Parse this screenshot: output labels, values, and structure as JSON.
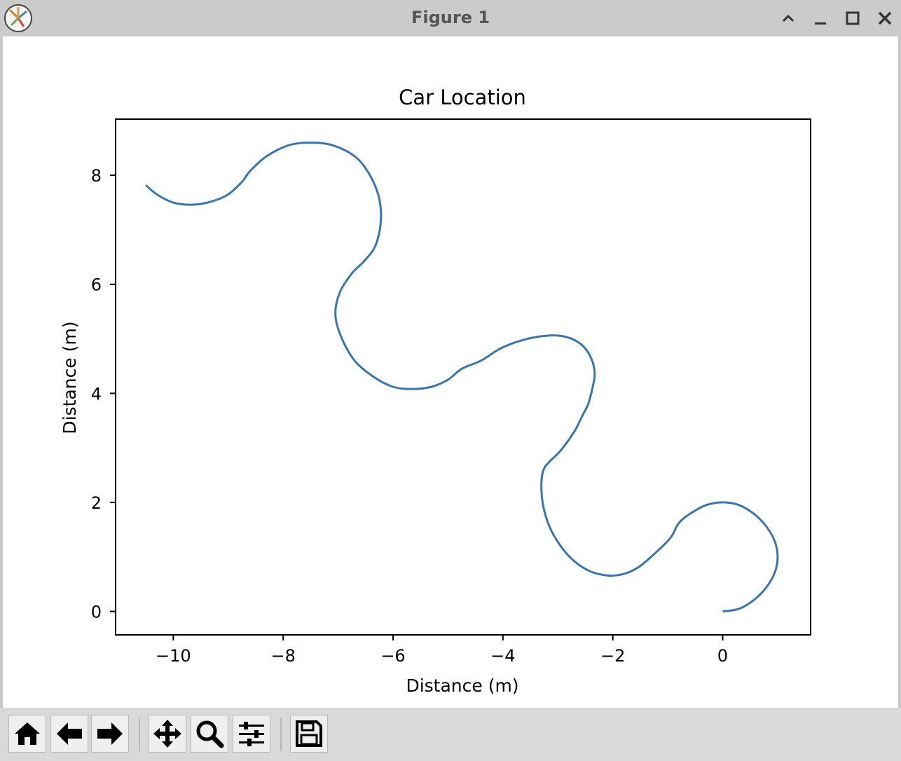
{
  "window": {
    "title": "Figure 1",
    "controls": [
      "collapse",
      "minimize",
      "maximize",
      "close"
    ]
  },
  "toolbar": {
    "buttons": [
      {
        "name": "home",
        "icon": "home-icon"
      },
      {
        "name": "back",
        "icon": "arrow-left-icon"
      },
      {
        "name": "forward",
        "icon": "arrow-right-icon"
      },
      {
        "name": "pan",
        "icon": "move-icon"
      },
      {
        "name": "zoom",
        "icon": "magnifier-icon"
      },
      {
        "name": "configure-subplots",
        "icon": "sliders-icon"
      },
      {
        "name": "save",
        "icon": "floppy-disk-icon"
      }
    ]
  },
  "chart_data": {
    "type": "line",
    "title": "Car Location",
    "xlabel": "Distance (m)",
    "ylabel": "Distance (m)",
    "xlim": [
      -11.05,
      1.6
    ],
    "ylim": [
      -0.43,
      9.03
    ],
    "xticks": [
      -10,
      -8,
      -6,
      -4,
      -2,
      0
    ],
    "xtick_labels": [
      "−10",
      "−8",
      "−6",
      "−4",
      "−2",
      "0"
    ],
    "yticks": [
      0,
      2,
      4,
      6,
      8
    ],
    "ytick_labels": [
      "0",
      "2",
      "4",
      "6",
      "8"
    ],
    "grid": false,
    "line_color": "#3a75b0",
    "series": [
      {
        "x": [
          0.0,
          0.3,
          0.58,
          0.8,
          0.95,
          1.0,
          0.95,
          0.8,
          0.58,
          0.3,
          0.0,
          -0.3,
          -0.58,
          -0.8,
          -0.95,
          -1.25,
          -1.55,
          -1.83,
          -2.1,
          -2.4,
          -2.7,
          -2.95,
          -3.15,
          -3.27,
          -3.3,
          -3.26,
          -3.15,
          -2.95,
          -2.7,
          -2.55,
          -2.45,
          -2.37,
          -2.33,
          -2.37,
          -2.5,
          -2.7,
          -3.0,
          -3.35,
          -3.7,
          -4.05,
          -4.4,
          -4.75,
          -5.0,
          -5.3,
          -5.65,
          -6.0,
          -6.35,
          -6.7,
          -6.95,
          -7.05,
          -6.97,
          -6.75,
          -6.55,
          -6.35,
          -6.25,
          -6.22,
          -6.27,
          -6.45,
          -6.7,
          -7.1,
          -7.5,
          -7.9,
          -8.3,
          -8.6,
          -8.75,
          -9.0,
          -9.3,
          -9.65,
          -10.0,
          -10.3,
          -10.5
        ],
        "y": [
          0.0,
          0.05,
          0.22,
          0.45,
          0.72,
          1.0,
          1.28,
          1.55,
          1.78,
          1.95,
          2.0,
          1.95,
          1.8,
          1.62,
          1.35,
          1.05,
          0.8,
          0.68,
          0.66,
          0.73,
          0.92,
          1.2,
          1.55,
          1.95,
          2.35,
          2.6,
          2.75,
          2.95,
          3.3,
          3.6,
          3.8,
          4.1,
          4.35,
          4.58,
          4.82,
          4.98,
          5.06,
          5.04,
          4.96,
          4.82,
          4.6,
          4.45,
          4.25,
          4.12,
          4.08,
          4.12,
          4.3,
          4.6,
          5.05,
          5.45,
          5.85,
          6.2,
          6.4,
          6.65,
          6.95,
          7.3,
          7.65,
          8.05,
          8.35,
          8.55,
          8.6,
          8.55,
          8.35,
          8.08,
          7.88,
          7.65,
          7.52,
          7.46,
          7.5,
          7.65,
          7.82
        ]
      }
    ]
  }
}
